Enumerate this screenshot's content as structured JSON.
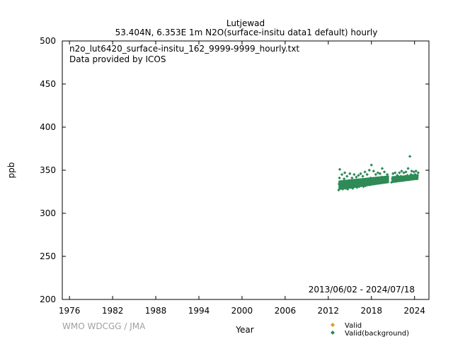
{
  "chart_data": {
    "type": "scatter",
    "title": "Lutjewad",
    "subtitle": "53.404N, 6.353E 1m    N2O(surface-insitu data1 default) hourly",
    "file_label": "n2o_lut6420_surface-insitu_162_9999-9999_hourly.txt",
    "provider_label": "Data provided by ICOS",
    "date_range": "2013/06/02 - 2024/07/18",
    "xlabel": "Year",
    "ylabel": "ppb",
    "xlim": [
      1975,
      2026
    ],
    "ylim": [
      200,
      500
    ],
    "x_ticks": [
      1976,
      1982,
      1988,
      1994,
      2000,
      2006,
      2012,
      2018,
      2024
    ],
    "y_ticks": [
      200,
      250,
      300,
      350,
      400,
      450,
      500
    ],
    "grid": false,
    "legend_placement": "bottom-right",
    "credit": "WMO WDCGG / JMA",
    "colors": {
      "valid": "#d4a017",
      "valid_background": "#2e8b57"
    },
    "series": [
      {
        "name": "Valid",
        "color": "#d4a017",
        "points": []
      },
      {
        "name": "Valid(background)",
        "color": "#2e8b57",
        "points": [
          [
            2013.45,
            327
          ],
          [
            2013.5,
            334
          ],
          [
            2013.55,
            341
          ],
          [
            2013.6,
            351
          ],
          [
            2013.7,
            330
          ],
          [
            2013.8,
            336
          ],
          [
            2013.9,
            345
          ],
          [
            2014.0,
            328
          ],
          [
            2014.1,
            333
          ],
          [
            2014.2,
            340
          ],
          [
            2014.3,
            347
          ],
          [
            2014.4,
            329
          ],
          [
            2014.5,
            335
          ],
          [
            2014.6,
            343
          ],
          [
            2014.7,
            328
          ],
          [
            2014.8,
            332
          ],
          [
            2014.9,
            338
          ],
          [
            2015.0,
            346
          ],
          [
            2015.1,
            330
          ],
          [
            2015.2,
            336
          ],
          [
            2015.3,
            341
          ],
          [
            2015.4,
            329
          ],
          [
            2015.5,
            334
          ],
          [
            2015.6,
            345
          ],
          [
            2015.7,
            331
          ],
          [
            2015.8,
            337
          ],
          [
            2015.9,
            342
          ],
          [
            2016.0,
            330
          ],
          [
            2016.1,
            335
          ],
          [
            2016.2,
            344
          ],
          [
            2016.3,
            331
          ],
          [
            2016.4,
            338
          ],
          [
            2016.5,
            346
          ],
          [
            2016.6,
            332
          ],
          [
            2016.7,
            336
          ],
          [
            2016.8,
            343
          ],
          [
            2016.9,
            331
          ],
          [
            2017.0,
            337
          ],
          [
            2017.1,
            348
          ],
          [
            2017.2,
            332
          ],
          [
            2017.3,
            339
          ],
          [
            2017.4,
            345
          ],
          [
            2017.5,
            333
          ],
          [
            2017.6,
            338
          ],
          [
            2017.7,
            350
          ],
          [
            2017.8,
            333
          ],
          [
            2017.9,
            341
          ],
          [
            2018.0,
            356
          ],
          [
            2018.1,
            334
          ],
          [
            2018.2,
            340
          ],
          [
            2018.3,
            349
          ],
          [
            2018.4,
            334
          ],
          [
            2018.5,
            339
          ],
          [
            2018.6,
            345
          ],
          [
            2018.7,
            335
          ],
          [
            2018.8,
            341
          ],
          [
            2018.9,
            347
          ],
          [
            2019.0,
            335
          ],
          [
            2019.1,
            340
          ],
          [
            2019.2,
            346
          ],
          [
            2019.3,
            336
          ],
          [
            2019.4,
            342
          ],
          [
            2019.5,
            352
          ],
          [
            2019.6,
            336
          ],
          [
            2019.7,
            341
          ],
          [
            2019.8,
            348
          ],
          [
            2019.9,
            337
          ],
          [
            2020.0,
            340
          ],
          [
            2020.2,
            345
          ],
          [
            2020.8,
            336
          ],
          [
            2020.9,
            340
          ],
          [
            2021.0,
            346
          ],
          [
            2021.1,
            337
          ],
          [
            2021.2,
            341
          ],
          [
            2021.3,
            347
          ],
          [
            2021.4,
            337
          ],
          [
            2021.5,
            342
          ],
          [
            2021.6,
            344
          ],
          [
            2021.7,
            338
          ],
          [
            2021.8,
            342
          ],
          [
            2021.9,
            347
          ],
          [
            2022.0,
            338
          ],
          [
            2022.1,
            343
          ],
          [
            2022.2,
            349
          ],
          [
            2022.3,
            338
          ],
          [
            2022.4,
            342
          ],
          [
            2022.5,
            347
          ],
          [
            2022.6,
            339
          ],
          [
            2022.7,
            343
          ],
          [
            2022.8,
            348
          ],
          [
            2022.9,
            339
          ],
          [
            2023.0,
            344
          ],
          [
            2023.1,
            352
          ],
          [
            2023.2,
            339
          ],
          [
            2023.3,
            343
          ],
          [
            2023.35,
            366
          ],
          [
            2023.4,
            340
          ],
          [
            2023.5,
            345
          ],
          [
            2023.6,
            349
          ],
          [
            2023.7,
            340
          ],
          [
            2023.8,
            344
          ],
          [
            2023.9,
            348
          ],
          [
            2024.0,
            340
          ],
          [
            2024.1,
            345
          ],
          [
            2024.2,
            349
          ],
          [
            2024.3,
            340
          ],
          [
            2024.4,
            344
          ],
          [
            2024.5,
            347
          ]
        ],
        "bands": [
          {
            "x": [
              2013.42,
              2020.45
            ],
            "low": [
              327,
              335
            ],
            "high": [
              338,
              344
            ]
          },
          {
            "x": [
              2020.8,
              2024.55
            ],
            "low": [
              335,
              339
            ],
            "high": [
              343,
              345
            ]
          }
        ]
      }
    ]
  }
}
